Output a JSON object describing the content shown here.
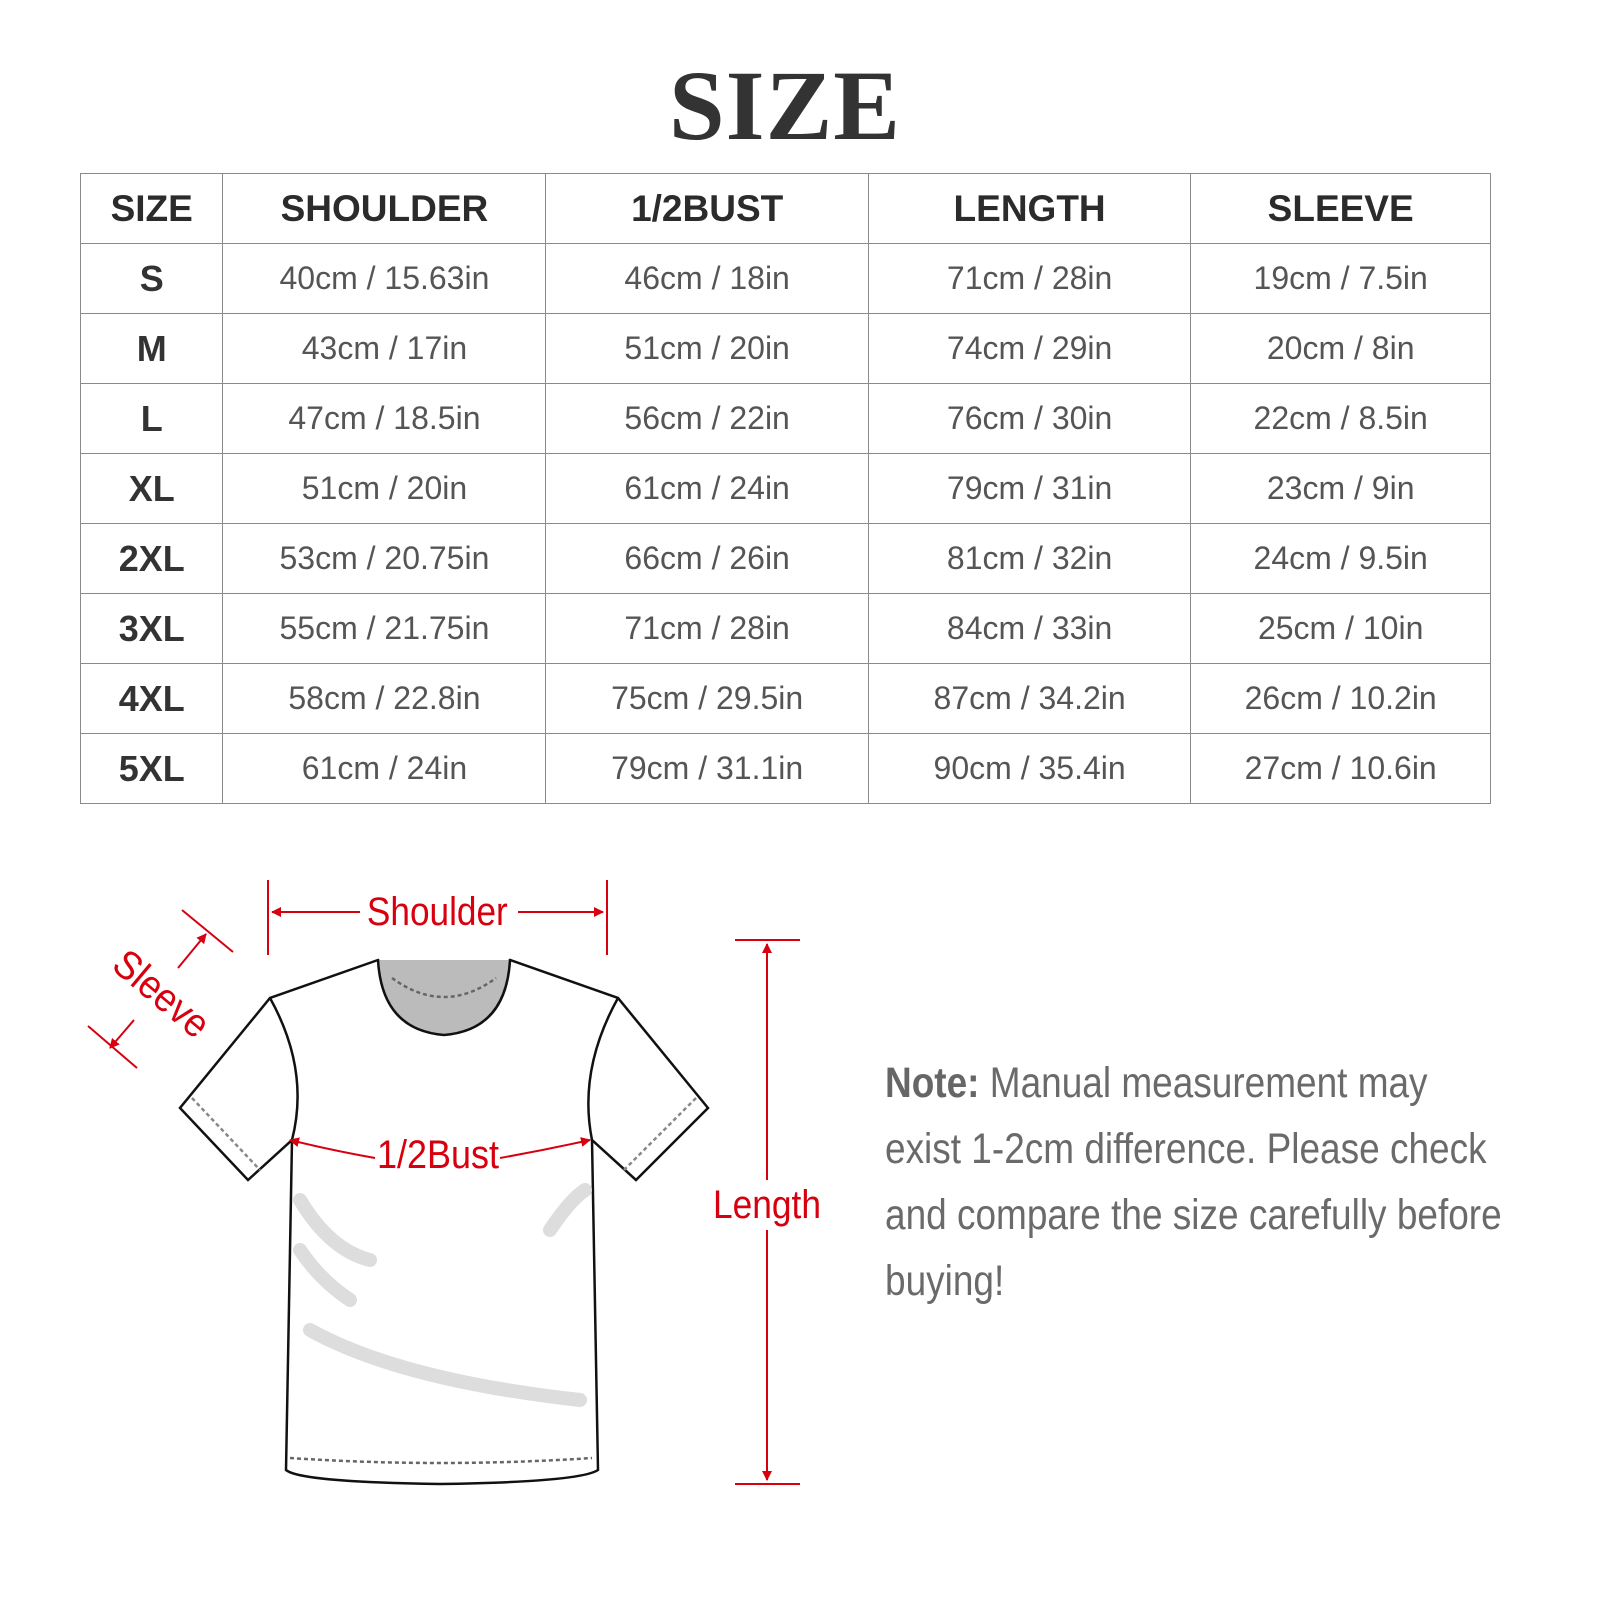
{
  "title": "SIZE",
  "table": {
    "headers": [
      "SIZE",
      "SHOULDER",
      "1/2BUST",
      "LENGTH",
      "SLEEVE"
    ],
    "rows": [
      [
        "S",
        "40cm / 15.63in",
        "46cm / 18in",
        "71cm / 28in",
        "19cm / 7.5in"
      ],
      [
        "M",
        "43cm / 17in",
        "51cm / 20in",
        "74cm / 29in",
        "20cm / 8in"
      ],
      [
        "L",
        "47cm / 18.5in",
        "56cm / 22in",
        "76cm / 30in",
        "22cm / 8.5in"
      ],
      [
        "XL",
        "51cm / 20in",
        "61cm / 24in",
        "79cm / 31in",
        "23cm / 9in"
      ],
      [
        "2XL",
        "53cm / 20.75in",
        "66cm / 26in",
        "81cm / 32in",
        "24cm / 9.5in"
      ],
      [
        "3XL",
        "55cm / 21.75in",
        "71cm / 28in",
        "84cm / 33in",
        "25cm / 10in"
      ],
      [
        "4XL",
        "58cm / 22.8in",
        "75cm / 29.5in",
        "87cm / 34.2in",
        "26cm / 10.2in"
      ],
      [
        "5XL",
        "61cm / 24in",
        "79cm / 31.1in",
        "90cm / 35.4in",
        "27cm / 10.6in"
      ]
    ]
  },
  "diagram": {
    "labels": {
      "shoulder": "Shoulder",
      "sleeve": "Sleeve",
      "bust": "1/2Bust",
      "length": "Length"
    },
    "accent_color": "#d7000f"
  },
  "note": {
    "label": "Note:",
    "text": " Manual measurement may exist 1-2cm difference. Please check and compare the size carefully before buying!"
  }
}
